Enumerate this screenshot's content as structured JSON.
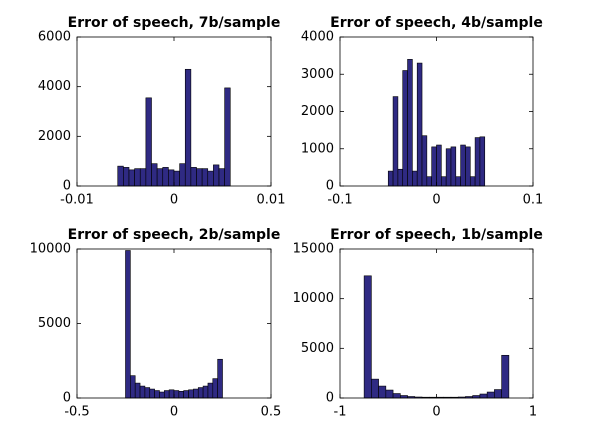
{
  "chart_data": [
    {
      "type": "histogram",
      "title": "Error of speech, 7b/sample",
      "color": "#2f2a83",
      "bins": [
        -0.0058,
        -0.00522,
        -0.00464,
        -0.00406,
        -0.00348,
        -0.0029,
        -0.00232,
        -0.00174,
        -0.00116,
        -0.00058,
        0,
        0.00058,
        0.00116,
        0.00174,
        0.00232,
        0.0029,
        0.00348,
        0.00406,
        0.00464,
        0.00522,
        0.0058
      ],
      "counts": [
        800,
        750,
        650,
        700,
        700,
        3550,
        900,
        700,
        750,
        650,
        600,
        900,
        4700,
        750,
        700,
        700,
        600,
        850,
        700,
        3950
      ],
      "xlim": [
        -0.01,
        0.01
      ],
      "xticks": [
        -0.01,
        0,
        0.01
      ],
      "ylim": [
        0,
        6000
      ],
      "yticks": [
        0,
        2000,
        4000,
        6000
      ]
    },
    {
      "type": "histogram",
      "title": "Error of speech, 4b/sample",
      "color": "#2f2a83",
      "bins": [
        -0.05,
        -0.045,
        -0.04,
        -0.035,
        -0.03,
        -0.025,
        -0.02,
        -0.015,
        -0.01,
        -0.005,
        0,
        0.005,
        0.01,
        0.015,
        0.02,
        0.025,
        0.03,
        0.035,
        0.04,
        0.045,
        0.05
      ],
      "counts": [
        400,
        2400,
        450,
        3100,
        3400,
        400,
        3300,
        1350,
        250,
        1050,
        1100,
        250,
        1000,
        1050,
        250,
        1100,
        1050,
        250,
        1300,
        1320
      ],
      "xlim": [
        -0.1,
        0.1
      ],
      "xticks": [
        -0.1,
        0,
        0.1
      ],
      "ylim": [
        0,
        4000
      ],
      "yticks": [
        0,
        1000,
        2000,
        3000,
        4000
      ]
    },
    {
      "type": "histogram",
      "title": "Error of speech, 2b/sample",
      "color": "#2f2a83",
      "bins": [
        -0.25,
        -0.225,
        -0.2,
        -0.175,
        -0.15,
        -0.125,
        -0.1,
        -0.075,
        -0.05,
        -0.025,
        0,
        0.025,
        0.05,
        0.075,
        0.1,
        0.125,
        0.15,
        0.175,
        0.2,
        0.225,
        0.25
      ],
      "counts": [
        9900,
        1500,
        1000,
        800,
        700,
        600,
        500,
        400,
        500,
        550,
        500,
        450,
        500,
        550,
        600,
        700,
        800,
        1000,
        1300,
        2600
      ],
      "xlim": [
        -0.5,
        0.5
      ],
      "xticks": [
        -0.5,
        0,
        0.5
      ],
      "ylim": [
        0,
        10000
      ],
      "yticks": [
        0,
        5000,
        10000
      ]
    },
    {
      "type": "histogram",
      "title": "Error of speech, 1b/sample",
      "color": "#2f2a83",
      "bins": [
        -0.75,
        -0.675,
        -0.6,
        -0.525,
        -0.45,
        -0.375,
        -0.3,
        -0.225,
        -0.15,
        -0.075,
        0,
        0.075,
        0.15,
        0.225,
        0.3,
        0.375,
        0.45,
        0.525,
        0.6,
        0.675,
        0.75
      ],
      "counts": [
        12300,
        1900,
        1200,
        800,
        450,
        250,
        150,
        100,
        80,
        80,
        80,
        80,
        80,
        100,
        150,
        250,
        400,
        600,
        850,
        4300
      ],
      "xlim": [
        -1,
        1
      ],
      "xticks": [
        -1,
        0,
        1
      ],
      "ylim": [
        0,
        15000
      ],
      "yticks": [
        0,
        5000,
        10000,
        15000
      ]
    }
  ]
}
